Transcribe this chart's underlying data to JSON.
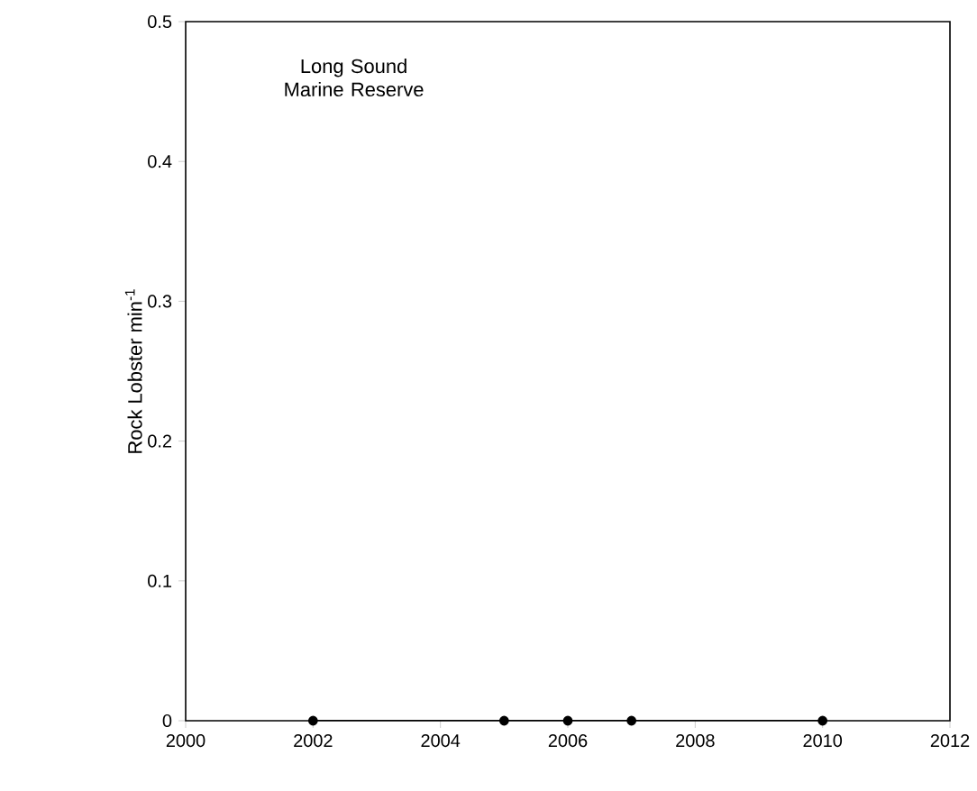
{
  "chart_data": {
    "type": "line",
    "ylabel": "Rock Lobster min$^{-1}$",
    "annotations": [
      "Long Sound Marine Reserve"
    ],
    "x": [
      2002,
      2005,
      2006,
      2007,
      2010
    ],
    "series": [
      {
        "color": "#000000",
        "values": [
          0,
          0,
          0,
          0,
          0
        ]
      }
    ],
    "xlim": [
      2000,
      2012
    ],
    "xticks": [
      2000,
      2002,
      2004,
      2006,
      2008,
      2010,
      2012
    ],
    "ylim": [
      0,
      0.5
    ],
    "yticks": [
      0,
      0.1,
      0.2,
      0.3,
      0.4,
      0.5
    ],
    "marker": "circle",
    "line_style": "solid",
    "grid": false
  }
}
